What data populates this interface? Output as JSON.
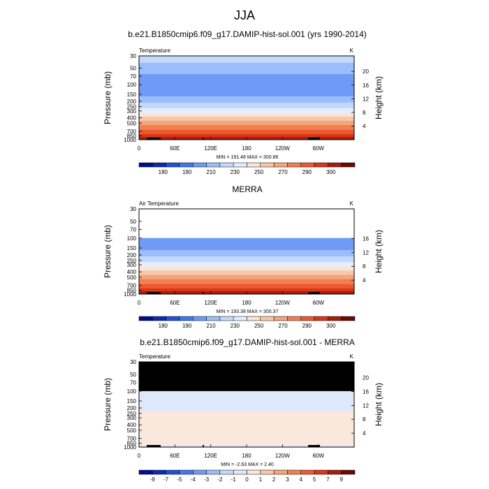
{
  "figure": {
    "season_title": "JJA",
    "dataset_title": "b.e21.B1850cmip6.f09_g17.DAMIP-hist-sol.001 (yrs 1990-2014)",
    "obs_title": "MERRA",
    "diff_title": "b.e21.B1850cmip6.f09_g17.DAMIP-hist-sol.001 - MERRA"
  },
  "colors": {
    "temp_scale": [
      "#000d8c",
      "#0a2ab5",
      "#2152d6",
      "#4178ec",
      "#6e9bf6",
      "#9bbdf9",
      "#c4d8fb",
      "#e6eefc",
      "#fbe4d5",
      "#f8c6a8",
      "#f5a47c",
      "#f17f52",
      "#ec5a2c",
      "#d9361a",
      "#a81d0d",
      "#6b0a05"
    ],
    "diff_scale": [
      "#000d8c",
      "#0a2ab5",
      "#2152d6",
      "#4178ec",
      "#6e9bf6",
      "#9bbdf9",
      "#c4d8fb",
      "#dde8fb",
      "#fbe8dc",
      "#f8c6a8",
      "#f5a47c",
      "#f17f52",
      "#ec5a2c",
      "#d9361a",
      "#a81d0d",
      "#6b0a05"
    ],
    "missing": "#000000"
  },
  "chart_data": [
    {
      "type": "heatmap",
      "title": "b.e21.B1850cmip6.f09_g17.DAMIP-hist-sol.001 (yrs 1990-2014)",
      "left_label": "Temperature",
      "units": "K",
      "ylabel": "Pressure (mb)",
      "y2label": "Height (km)",
      "x_ticks": [
        "0",
        "60E",
        "120E",
        "180",
        "120W",
        "60W"
      ],
      "p_ticks": [
        "30",
        "50",
        "70",
        "100",
        "150",
        "200",
        "250",
        "300",
        "400",
        "500",
        "700",
        "850",
        "1000"
      ],
      "h_ticks": [
        "4",
        "8",
        "12",
        "16",
        "20"
      ],
      "minmax": "MIN = 191.48  MAX = 300.86",
      "colorbar_labels": [
        "180",
        "190",
        "210",
        "230",
        "250",
        "270",
        "290",
        "300"
      ],
      "levels": [
        175,
        180,
        185,
        190,
        200,
        210,
        220,
        230,
        240,
        250,
        260,
        270,
        280,
        290,
        295,
        300
      ],
      "profile": {
        "p": [
          30,
          50,
          70,
          100,
          150,
          200,
          250,
          300,
          400,
          500,
          700,
          850,
          1000
        ],
        "t": [
          224,
          217,
          207,
          201,
          207,
          217,
          226,
          235,
          252,
          266,
          283,
          293,
          299
        ]
      },
      "hide_above": null
    },
    {
      "type": "heatmap",
      "title": "MERRA",
      "left_label": "Air Temperature",
      "units": "K",
      "ylabel": "Pressure (mb)",
      "y2label": "Height (km)",
      "x_ticks": [
        "0",
        "60E",
        "120E",
        "180",
        "120W",
        "60W"
      ],
      "p_ticks": [
        "30",
        "50",
        "70",
        "100",
        "150",
        "200",
        "250",
        "300",
        "400",
        "500",
        "700",
        "850",
        "1000"
      ],
      "h_ticks": [
        "4",
        "8",
        "12",
        "16"
      ],
      "minmax": "MIN = 193.38  MAX = 300.37",
      "colorbar_labels": [
        "180",
        "190",
        "210",
        "230",
        "250",
        "270",
        "290",
        "300"
      ],
      "levels": [
        175,
        180,
        185,
        190,
        200,
        210,
        220,
        230,
        240,
        250,
        260,
        270,
        280,
        290,
        295,
        300
      ],
      "profile": {
        "p": [
          100,
          150,
          200,
          250,
          300,
          400,
          500,
          700,
          850,
          1000
        ],
        "t": [
          203,
          207,
          217,
          226,
          235,
          252,
          266,
          283,
          293,
          299
        ]
      },
      "hide_above": 100
    },
    {
      "type": "heatmap",
      "title": "b.e21.B1850cmip6.f09_g17.DAMIP-hist-sol.001 - MERRA",
      "left_label": "Temperature",
      "units": "K",
      "ylabel": "Pressure (mb)",
      "y2label": "Height (km)",
      "x_ticks": [
        "0",
        "60E",
        "120E",
        "180",
        "120W",
        "60W"
      ],
      "p_ticks": [
        "30",
        "50",
        "70",
        "100",
        "150",
        "200",
        "250",
        "300",
        "400",
        "500",
        "700",
        "850",
        "1000"
      ],
      "h_ticks": [
        "4",
        "8",
        "12",
        "16",
        "20"
      ],
      "minmax": "MIN =  -2.63  MAX =   2.40",
      "colorbar_labels": [
        "-9",
        "-7",
        "-5",
        "-4",
        "-3",
        "-2",
        "-1",
        "0",
        "1",
        "2",
        "3",
        "4",
        "5",
        "7",
        "9"
      ],
      "levels": [
        -10,
        -9,
        -7,
        -5,
        -4,
        -3,
        -2,
        -1,
        0,
        1,
        2,
        3,
        4,
        5,
        7,
        9
      ],
      "profile": {
        "p": [
          100,
          150,
          200,
          250,
          300,
          400,
          500,
          700,
          850,
          1000
        ],
        "t": [
          -0.5,
          -0.6,
          -0.3,
          0.3,
          0.4,
          0.5,
          0.4,
          0.3,
          0.5,
          -0.2
        ]
      },
      "hide_above": 100
    }
  ]
}
